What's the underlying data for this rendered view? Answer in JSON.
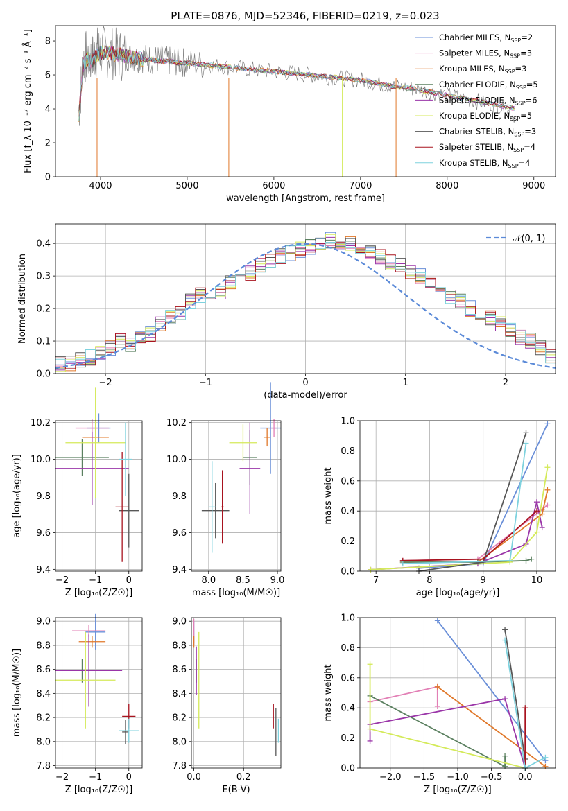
{
  "title": "PLATE=0876, MJD=52346, FIBERID=0219, z=0.023",
  "colors": [
    "#6a8fd8",
    "#e27fb5",
    "#e0782a",
    "#5b8060",
    "#9a35a8",
    "#d4ea5a",
    "#575757",
    "#a8131f",
    "#7ed2de"
  ],
  "chart_data": [
    {
      "id": "spectrum",
      "type": "line",
      "xlabel": "wavelength [Angstrom, rest frame]",
      "ylabel": "Flux [f_λ 10⁻¹⁷ erg cm⁻² s⁻¹ Å⁻¹]",
      "xlim": [
        3480,
        9250
      ],
      "ylim": [
        0,
        8.9
      ],
      "xticks": [
        4000,
        5000,
        6000,
        7000,
        8000,
        9000
      ],
      "yticks": [
        0,
        2,
        4,
        6,
        8
      ],
      "grid": false,
      "legend_position": "top-right",
      "data_series": {
        "name": "data",
        "color": "#808080",
        "x": [
          3750,
          3800,
          3850,
          3900,
          3950,
          4000,
          4100,
          4200,
          4300,
          4400,
          4500,
          4600,
          4700,
          4800,
          4900,
          5000,
          5200,
          5400,
          5600,
          5800,
          6000,
          6200,
          6400,
          6600,
          6800,
          7000,
          7200,
          7400,
          7600,
          7800,
          8000,
          8200,
          8400,
          8600,
          8800
        ],
        "y": [
          3.8,
          6.8,
          7.2,
          6.9,
          7.3,
          7.4,
          7.3,
          7.2,
          7.1,
          7.0,
          7.0,
          6.9,
          6.9,
          6.8,
          6.8,
          6.7,
          6.6,
          6.5,
          6.4,
          6.3,
          6.2,
          6.1,
          6.0,
          5.9,
          5.8,
          5.7,
          5.5,
          5.3,
          5.2,
          5.0,
          4.8,
          4.6,
          4.4,
          4.2,
          3.5
        ]
      },
      "model_x": [
        3750,
        3800,
        3850,
        3900,
        3950,
        4000,
        4100,
        4200,
        4300,
        4400,
        4500,
        4600,
        4700,
        4800,
        4900,
        5000,
        5200,
        5400,
        5600,
        5800,
        6000,
        6200,
        6400,
        6600,
        6800,
        7000,
        7200,
        7400
      ],
      "model_y": [
        3.6,
        6.6,
        6.9,
        6.8,
        7.1,
        7.3,
        7.3,
        7.2,
        7.1,
        7.0,
        6.9,
        6.9,
        6.8,
        6.8,
        6.7,
        6.7,
        6.6,
        6.5,
        6.4,
        6.3,
        6.2,
        6.1,
        6.0,
        5.9,
        5.8,
        5.7,
        5.5,
        5.3
      ],
      "model_x_ext": [
        7400,
        7600,
        7800,
        8000,
        8200,
        8400,
        8600,
        8800
      ],
      "model_y_ext": [
        5.3,
        5.2,
        5.0,
        4.8,
        4.6,
        4.4,
        4.2,
        4.0
      ],
      "legend": [
        {
          "label": "Chabrier MILES, N",
          "sub": "SSP",
          "value": "=2"
        },
        {
          "label": "Salpeter MILES, N",
          "sub": "SSP",
          "value": "=3"
        },
        {
          "label": "Kroupa MILES, N",
          "sub": "SSP",
          "value": "=3"
        },
        {
          "label": "Chabrier ELODIE, N",
          "sub": "SSP",
          "value": "=5"
        },
        {
          "label": "Salpeter ELODIE, N",
          "sub": "SSP",
          "value": "=6"
        },
        {
          "label": "Kroupa ELODIE, N",
          "sub": "SSP",
          "value": "=5"
        },
        {
          "label": "Chabrier STELIB, N",
          "sub": "SSP",
          "value": "=3"
        },
        {
          "label": "Salpeter STELIB, N",
          "sub": "SSP",
          "value": "=4"
        },
        {
          "label": "Kroupa STELIB, N",
          "sub": "SSP",
          "value": "=4"
        }
      ]
    },
    {
      "id": "residuals",
      "type": "line",
      "xlabel": "(data-model)/error",
      "ylabel": "Normed distribution",
      "xlim": [
        -2.5,
        2.5
      ],
      "ylim": [
        0,
        0.46
      ],
      "xticks": [
        -2,
        -1,
        0,
        1,
        2
      ],
      "yticks": [
        0.0,
        0.1,
        0.2,
        0.3,
        0.4
      ],
      "grid": true,
      "legend_position": "top-right",
      "legend": "𝒩(0, 1)",
      "bin_width": 0.1,
      "hist_start": -2.5,
      "hist": [
        0.03,
        0.03,
        0.04,
        0.05,
        0.06,
        0.08,
        0.1,
        0.09,
        0.11,
        0.12,
        0.15,
        0.17,
        0.19,
        0.22,
        0.24,
        0.23,
        0.25,
        0.28,
        0.29,
        0.31,
        0.33,
        0.35,
        0.36,
        0.37,
        0.38,
        0.39,
        0.4,
        0.41,
        0.39,
        0.4,
        0.38,
        0.37,
        0.36,
        0.34,
        0.33,
        0.31,
        0.3,
        0.28,
        0.26,
        0.24,
        0.22,
        0.2,
        0.18,
        0.17,
        0.15,
        0.13,
        0.11,
        0.1,
        0.08,
        0.05
      ]
    },
    {
      "id": "age-Z",
      "type": "scatter",
      "xlabel": "Z [log₁₀(Z/Z☉)]",
      "ylabel": "age  [log₁₀(age/yr)]",
      "xlim": [
        -2.2,
        0.4
      ],
      "ylim": [
        9.39,
        10.21
      ],
      "xticks": [
        -2,
        -1,
        0
      ],
      "yticks": [
        9.4,
        9.6,
        9.8,
        10.0,
        10.2
      ],
      "grid": true,
      "points": [
        {
          "c": 0,
          "x": -0.9,
          "y": 10.17,
          "ex": 0.35,
          "ey": 0.08
        },
        {
          "c": 1,
          "x": -1.1,
          "y": 10.17,
          "ex": 0.5,
          "ey": 0.05
        },
        {
          "c": 2,
          "x": -1.0,
          "y": 10.12,
          "ex": 0.4,
          "ey": 0.1
        },
        {
          "c": 3,
          "x": -1.4,
          "y": 10.01,
          "ex": 0.8,
          "ey": 0.1
        },
        {
          "c": 4,
          "x": -1.1,
          "y": 9.95,
          "ex": 1.1,
          "ey": 0.2
        },
        {
          "c": 5,
          "x": -1.0,
          "y": 10.09,
          "ex": 0.9,
          "ey": 0.3
        },
        {
          "c": 6,
          "x": 0.0,
          "y": 9.72,
          "ex": 0.3,
          "ey": 0.2
        },
        {
          "c": 7,
          "x": -0.2,
          "y": 9.74,
          "ex": 0.2,
          "ey": 0.3
        },
        {
          "c": 8,
          "x": -0.1,
          "y": 10.0,
          "ex": 0.2,
          "ey": 0.2
        }
      ]
    },
    {
      "id": "age-mass",
      "type": "scatter",
      "xlabel": "mass [log₁₀(M/M☉)]",
      "ylabel": "",
      "xlim": [
        7.75,
        9.05
      ],
      "ylim": [
        9.39,
        10.21
      ],
      "xticks": [
        8.0,
        8.5,
        9.0
      ],
      "yticks": [
        9.4,
        9.6,
        9.8,
        10.0,
        10.2
      ],
      "grid": true,
      "points": [
        {
          "c": 0,
          "x": 8.9,
          "y": 10.17,
          "ex": 0.15,
          "ey": 0.25
        },
        {
          "c": 1,
          "x": 8.95,
          "y": 10.17,
          "ex": 0.05,
          "ey": 0.05
        },
        {
          "c": 2,
          "x": 8.85,
          "y": 10.12,
          "ex": 0.05,
          "ey": 0.05
        },
        {
          "c": 3,
          "x": 8.6,
          "y": 10.01,
          "ex": 0.1,
          "ey": 0.15
        },
        {
          "c": 4,
          "x": 8.6,
          "y": 9.95,
          "ex": 0.15,
          "ey": 0.25
        },
        {
          "c": 5,
          "x": 8.5,
          "y": 10.09,
          "ex": 0.2,
          "ey": 0.1
        },
        {
          "c": 6,
          "x": 8.1,
          "y": 9.72,
          "ex": 0.2,
          "ey": 0.15
        },
        {
          "c": 7,
          "x": 8.2,
          "y": 9.74,
          "ex": 0.02,
          "ey": 0.2
        },
        {
          "c": 8,
          "x": 8.05,
          "y": 9.74,
          "ex": 0.05,
          "ey": 0.25
        }
      ]
    },
    {
      "id": "weight-age",
      "type": "line",
      "xlabel": "age  [log₁₀(age/yr)]",
      "ylabel": "mass weight",
      "xlim": [
        6.7,
        10.35
      ],
      "ylim": [
        0,
        1.0
      ],
      "xticks": [
        7,
        8,
        9,
        10
      ],
      "yticks": [
        0.0,
        0.2,
        0.4,
        0.6,
        0.8,
        1.0
      ],
      "grid": true,
      "series": [
        {
          "c": 0,
          "x": [
            7.8,
            9.0,
            10.2
          ],
          "y": [
            0.02,
            0.05,
            0.98
          ]
        },
        {
          "c": 1,
          "x": [
            7.5,
            8.9,
            10.1,
            10.2
          ],
          "y": [
            0.07,
            0.08,
            0.41,
            0.44
          ]
        },
        {
          "c": 2,
          "x": [
            7.5,
            8.9,
            10.1,
            10.2
          ],
          "y": [
            0.06,
            0.06,
            0.38,
            0.54
          ]
        },
        {
          "c": 3,
          "x": [
            7.5,
            8.9,
            9.8,
            9.9
          ],
          "y": [
            0.06,
            0.06,
            0.07,
            0.08
          ]
        },
        {
          "c": 4,
          "x": [
            6.9,
            8.9,
            9.8,
            10.0,
            10.1
          ],
          "y": [
            0.01,
            0.05,
            0.18,
            0.46,
            0.29
          ]
        },
        {
          "c": 5,
          "x": [
            6.9,
            9.5,
            10.0,
            10.2
          ],
          "y": [
            0.01,
            0.06,
            0.26,
            0.69
          ]
        },
        {
          "c": 6,
          "x": [
            7.8,
            9.0,
            9.8
          ],
          "y": [
            0.0,
            0.06,
            0.92
          ]
        },
        {
          "c": 7,
          "x": [
            7.5,
            9.0,
            10.0
          ],
          "y": [
            0.07,
            0.08,
            0.4
          ]
        },
        {
          "c": 8,
          "x": [
            7.5,
            9.5,
            9.8
          ],
          "y": [
            0.05,
            0.07,
            0.85
          ]
        }
      ]
    },
    {
      "id": "mass-Z",
      "type": "scatter",
      "xlabel": "Z [log₁₀(Z/Z☉)]",
      "ylabel": "mass [log₁₀(M/M☉)]",
      "xlim": [
        -2.2,
        0.4
      ],
      "ylim": [
        7.78,
        9.03
      ],
      "xticks": [
        -2,
        -1,
        0
      ],
      "yticks": [
        7.8,
        8.0,
        8.2,
        8.4,
        8.6,
        8.8,
        9.0
      ],
      "grid": true,
      "points": [
        {
          "c": 0,
          "x": -1.0,
          "y": 8.91,
          "ex": 0.3,
          "ey": 0.15
        },
        {
          "c": 1,
          "x": -1.2,
          "y": 8.92,
          "ex": 0.5,
          "ey": 0.05
        },
        {
          "c": 2,
          "x": -1.1,
          "y": 8.83,
          "ex": 0.4,
          "ey": 0.05
        },
        {
          "c": 3,
          "x": -1.4,
          "y": 8.59,
          "ex": 0.8,
          "ey": 0.1
        },
        {
          "c": 4,
          "x": -1.2,
          "y": 8.59,
          "ex": 1.0,
          "ey": 0.3
        },
        {
          "c": 5,
          "x": -1.3,
          "y": 8.51,
          "ex": 0.9,
          "ey": 0.4
        },
        {
          "c": 6,
          "x": -0.1,
          "y": 8.08,
          "ex": 0.1,
          "ey": 0.1
        },
        {
          "c": 7,
          "x": 0.0,
          "y": 8.21,
          "ex": 0.2,
          "ey": 0.1
        },
        {
          "c": 8,
          "x": 0.0,
          "y": 8.09,
          "ex": 0.3,
          "ey": 0.1
        }
      ]
    },
    {
      "id": "mass-ebv",
      "type": "scatter",
      "xlabel": "E(B-V)",
      "ylabel": "",
      "xlim": [
        -0.01,
        0.35
      ],
      "ylim": [
        7.78,
        9.03
      ],
      "xticks": [
        0.0,
        0.2
      ],
      "yticks": [
        7.8,
        8.0,
        8.2,
        8.4,
        8.6,
        8.8,
        9.0
      ],
      "grid": true,
      "points": [
        {
          "c": 0,
          "x": 0.0,
          "y": 8.9,
          "ex": 0.0,
          "ey": 0.1
        },
        {
          "c": 1,
          "x": 0.0,
          "y": 8.92,
          "ex": 0.0,
          "ey": 0.1
        },
        {
          "c": 2,
          "x": 0.0,
          "y": 8.83,
          "ex": 0.0,
          "ey": 0.05
        },
        {
          "c": 3,
          "x": 0.01,
          "y": 8.59,
          "ex": 0.0,
          "ey": 0.1
        },
        {
          "c": 4,
          "x": 0.01,
          "y": 8.59,
          "ex": 0.0,
          "ey": 0.2
        },
        {
          "c": 5,
          "x": 0.02,
          "y": 8.51,
          "ex": 0.0,
          "ey": 0.4
        },
        {
          "c": 6,
          "x": 0.33,
          "y": 8.08,
          "ex": 0.0,
          "ey": 0.2
        },
        {
          "c": 7,
          "x": 0.32,
          "y": 8.21,
          "ex": 0.0,
          "ey": 0.1
        },
        {
          "c": 8,
          "x": 0.34,
          "y": 8.09,
          "ex": 0.0,
          "ey": 0.1
        }
      ]
    },
    {
      "id": "weight-Z",
      "type": "line",
      "xlabel": "Z [log₁₀(Z/Z☉)]",
      "ylabel": "mass weight",
      "xlim": [
        -2.45,
        0.45
      ],
      "ylim": [
        0,
        1.0
      ],
      "xticks": [
        -2.0,
        -1.5,
        -1.0,
        -0.5,
        0.0
      ],
      "yticks": [
        0.0,
        0.2,
        0.4,
        0.6,
        0.8,
        1.0
      ],
      "grid": true,
      "series": [
        {
          "c": 0,
          "x": [
            -1.3,
            0.3
          ],
          "y": [
            0.98,
            0.05
          ]
        },
        {
          "c": 1,
          "x": [
            -2.3,
            -1.3,
            -1.3
          ],
          "y": [
            0.44,
            0.54,
            0.41
          ]
        },
        {
          "c": 2,
          "x": [
            -1.3,
            0.3
          ],
          "y": [
            0.54,
            0.01
          ]
        },
        {
          "c": 3,
          "x": [
            -2.3,
            -0.3,
            -0.3
          ],
          "y": [
            0.48,
            0.01,
            0.08
          ]
        },
        {
          "c": 4,
          "x": [
            -2.3,
            -2.3,
            -0.3,
            0.0
          ],
          "y": [
            0.18,
            0.29,
            0.46,
            0.0
          ]
        },
        {
          "c": 5,
          "x": [
            -2.3,
            -2.3,
            0.0
          ],
          "y": [
            0.69,
            0.26,
            0.0
          ]
        },
        {
          "c": 6,
          "x": [
            -0.3,
            0.0
          ],
          "y": [
            0.92,
            0.06
          ]
        },
        {
          "c": 7,
          "x": [
            0.0,
            0.0
          ],
          "y": [
            0.4,
            0.0
          ]
        },
        {
          "c": 8,
          "x": [
            -0.3,
            0.0,
            0.3
          ],
          "y": [
            0.85,
            0.0,
            0.07
          ]
        }
      ]
    }
  ]
}
